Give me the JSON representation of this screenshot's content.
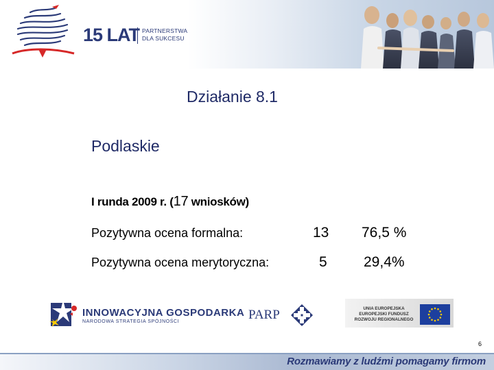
{
  "header": {
    "logo_main": "15 LAT",
    "logo_tag_line1": "PARTNERSTWA",
    "logo_tag_line2": "DLA SUKCESU"
  },
  "slide": {
    "title": "Działanie 8.1",
    "region": "Podlaskie",
    "round_prefix": "I runda 2009 r. (",
    "round_count": "17",
    "round_suffix": " wniosków)",
    "rows": [
      {
        "label": "Pozytywna ocena formalna:",
        "count": "13",
        "percent": "76,5 %"
      },
      {
        "label": "Pozytywna ocena merytoryczna:",
        "count": "5",
        "percent": "29,4%"
      }
    ],
    "page_number": "6"
  },
  "logos": {
    "ig_main": "INNOWACYJNA GOSPODARKA",
    "ig_sub": "NARODOWA STRATEGIA SPÓJNOŚCI",
    "parp": "PARP",
    "eu_line1": "UNIA EUROPEJSKA",
    "eu_line2": "EUROPEJSKI FUNDUSZ",
    "eu_line3": "ROZWOJU REGIONALNEGO"
  },
  "footer": {
    "slogan": "Rozmawiamy z ludźmi pomagamy firmom"
  },
  "colors": {
    "primary": "#1f2a66",
    "brand_blue": "#2b3a78",
    "eu_blue": "#1d3f9e",
    "eu_star": "#ffcc00",
    "ig_red": "#d62828"
  }
}
